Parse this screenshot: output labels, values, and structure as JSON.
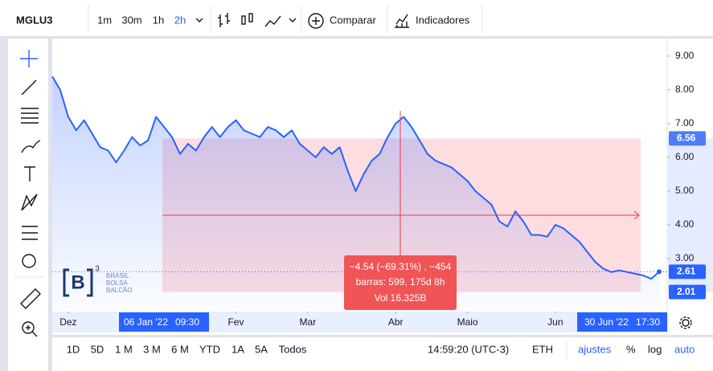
{
  "toolbar": {
    "symbol": "MGLU3",
    "intervals": [
      "1m",
      "30m",
      "1h",
      "2h"
    ],
    "active_interval": 3,
    "compare": "Comparar",
    "indicators": "Indicadores"
  },
  "logo": {
    "mark": "B",
    "superscript": "3",
    "lines": [
      "BRASIL",
      "BOLSA",
      "BALCÃO"
    ]
  },
  "range_labels": [
    "06 Jan '22",
    "09:30",
    "30 Jun '22",
    "17:30"
  ],
  "measure_tooltip": [
    "−4.54 (−69.31%) , −454",
    "barras: 599, 175d 8h",
    "Vol 16.325B"
  ],
  "bottom_bar": {
    "ranges": [
      "1D",
      "5D",
      "1 M",
      "3 M",
      "6 M",
      "YTD",
      "1A",
      "5A",
      "Todos"
    ],
    "time": "14:59:20 (UTC-3)",
    "session": "ETH",
    "settings": "ajustes",
    "percent": "%",
    "log": "log",
    "auto": "auto"
  },
  "chart_data": {
    "type": "line",
    "color": "#2962ff",
    "values": [
      8.4,
      8.0,
      7.2,
      6.8,
      7.1,
      6.7,
      6.3,
      6.2,
      5.85,
      6.2,
      6.6,
      6.35,
      6.5,
      7.2,
      6.9,
      6.6,
      6.1,
      6.4,
      6.2,
      6.6,
      6.9,
      6.6,
      6.9,
      7.1,
      6.8,
      6.7,
      6.6,
      6.9,
      6.8,
      6.6,
      6.8,
      6.4,
      6.2,
      6.0,
      6.3,
      6.1,
      6.3,
      5.6,
      5.0,
      5.5,
      5.9,
      6.1,
      6.6,
      7.0,
      7.2,
      6.9,
      6.5,
      6.1,
      5.9,
      5.8,
      5.7,
      5.5,
      5.3,
      5.0,
      4.8,
      4.6,
      4.1,
      3.95,
      4.4,
      4.1,
      3.7,
      3.7,
      3.65,
      4.0,
      3.9,
      3.7,
      3.5,
      3.2,
      2.9,
      2.7,
      2.6,
      2.65,
      2.6,
      2.55,
      2.5,
      2.4,
      2.61
    ],
    "xlim": [
      0,
      76
    ],
    "xticks": [
      {
        "value": 2,
        "label": "Dez"
      },
      {
        "value": 23,
        "label": "Fev"
      },
      {
        "value": 32,
        "label": "Mar"
      },
      {
        "value": 43,
        "label": "Abr"
      },
      {
        "value": 52,
        "label": "Maio"
      },
      {
        "value": 63,
        "label": "Jun"
      }
    ],
    "ylim": [
      1.43,
      9.52
    ],
    "yticks": [
      {
        "value": 3,
        "label": "3.00"
      },
      {
        "value": 4,
        "label": "4.00"
      },
      {
        "value": 5,
        "label": "5.00"
      },
      {
        "value": 6,
        "label": "6.00"
      },
      {
        "value": 7,
        "label": "7.00"
      },
      {
        "value": 8,
        "label": "8.00"
      },
      {
        "value": 9,
        "label": "9.00"
      }
    ],
    "price_labels": [
      6.56,
      2.61,
      2.01
    ]
  }
}
